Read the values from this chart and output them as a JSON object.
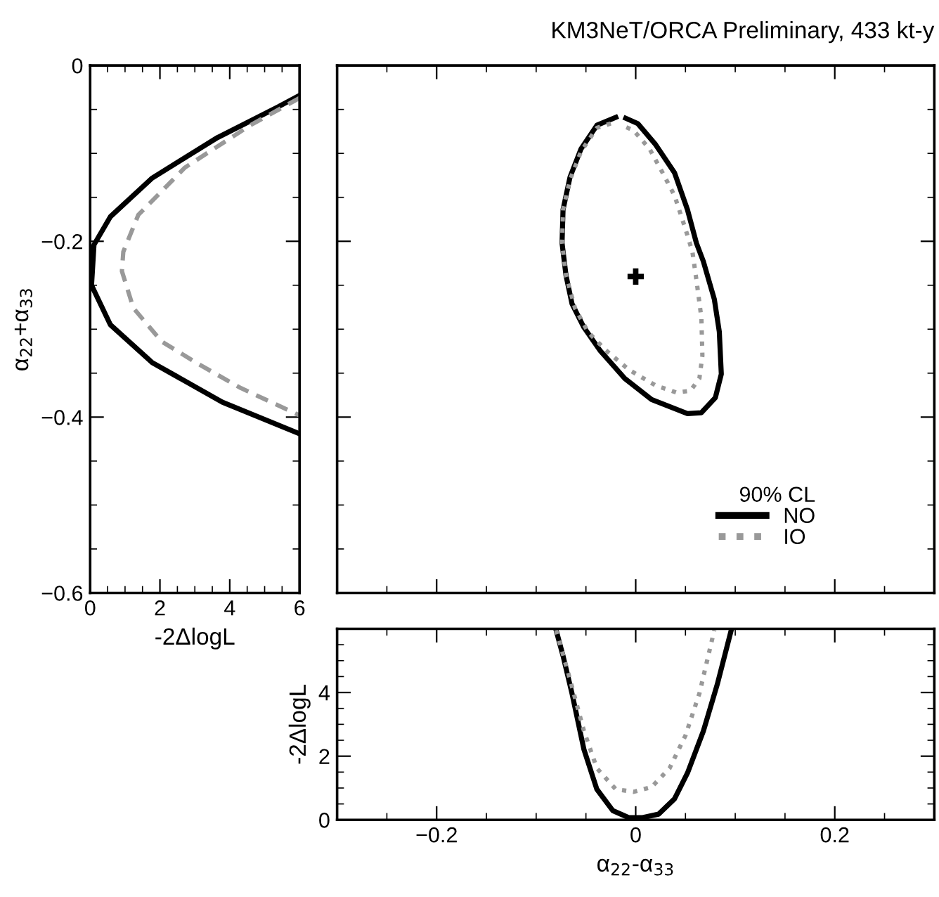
{
  "chart_data": [
    {
      "type": "line",
      "xlabel": "-2ΔlogL",
      "ylabel": "α$_{22}$+α$_{33}$",
      "xlim": [
        0,
        6
      ],
      "ylim": [
        -0.6,
        0
      ],
      "xticks": [
        0,
        2,
        4,
        6
      ],
      "yticks": [
        {
          "value": -0.6,
          "label": "−0.6"
        },
        {
          "value": -0.4,
          "label": "−0.4"
        },
        {
          "value": -0.2,
          "label": "−0.2"
        },
        0
      ],
      "grid": false,
      "legend": false,
      "series": [
        {
          "color": "#000000",
          "line_style": "solid",
          "x": [
            6.0,
            5.39,
            3.65,
            1.78,
            0.58,
            0.11,
            0.04,
            0.58,
            1.78,
            3.79,
            6.0
          ],
          "values": [
            -0.034,
            -0.047,
            -0.082,
            -0.128,
            -0.172,
            -0.204,
            -0.25,
            -0.295,
            -0.338,
            -0.383,
            -0.419
          ]
        },
        {
          "color": "#999999",
          "line_style": "dashed",
          "x": [
            6.0,
            4.59,
            2.72,
            1.38,
            0.95,
            0.91,
            1.24,
            2.05,
            3.12,
            4.32,
            6.0
          ],
          "values": [
            -0.037,
            -0.068,
            -0.116,
            -0.17,
            -0.212,
            -0.234,
            -0.276,
            -0.314,
            -0.34,
            -0.367,
            -0.398
          ]
        }
      ]
    },
    {
      "type": "line",
      "title": "KM3NeT/ORCA Preliminary, 433 kt-y",
      "legend_title": "90% CL",
      "xlim": [
        -0.3,
        0.3
      ],
      "ylim": [
        -0.6,
        0
      ],
      "xticks": [
        -0.2,
        0,
        0.2
      ],
      "yticks": [
        -0.6,
        -0.4,
        -0.2,
        0
      ],
      "tick_labels": false,
      "grid": false,
      "legend": "bottom",
      "series": [
        {
          "name": "NO",
          "color": "#000000",
          "line_style": "solid",
          "x": [
            -0.02,
            -0.039,
            -0.055,
            -0.066,
            -0.073,
            -0.074,
            -0.07,
            -0.064,
            -0.052,
            -0.036,
            -0.011,
            0.016,
            0.052,
            0.066,
            0.08,
            0.086,
            0.084,
            0.079,
            0.068,
            0.061,
            0.052,
            0.039,
            0.02,
            0.002,
            -0.01
          ],
          "values": [
            -0.059,
            -0.068,
            -0.095,
            -0.127,
            -0.164,
            -0.202,
            -0.239,
            -0.271,
            -0.298,
            -0.324,
            -0.356,
            -0.38,
            -0.396,
            -0.395,
            -0.378,
            -0.351,
            -0.303,
            -0.266,
            -0.223,
            -0.202,
            -0.164,
            -0.122,
            -0.09,
            -0.066,
            -0.06
          ]
        },
        {
          "name": "IO",
          "color": "#999999",
          "line_style": "dotted",
          "x": [
            -0.025,
            -0.039,
            -0.055,
            -0.066,
            -0.073,
            -0.074,
            -0.07,
            -0.061,
            -0.048,
            -0.03,
            -0.007,
            0.02,
            0.041,
            0.055,
            0.064,
            0.067,
            0.066,
            0.061,
            0.057,
            0.05,
            0.039,
            0.027,
            0.014,
            -0.002,
            -0.014
          ],
          "values": [
            -0.066,
            -0.071,
            -0.098,
            -0.13,
            -0.164,
            -0.202,
            -0.239,
            -0.276,
            -0.303,
            -0.324,
            -0.346,
            -0.364,
            -0.372,
            -0.37,
            -0.356,
            -0.33,
            -0.287,
            -0.244,
            -0.212,
            -0.186,
            -0.148,
            -0.122,
            -0.095,
            -0.074,
            -0.068
          ]
        },
        {
          "type": "scatter",
          "color": "#000000",
          "marker": "cross",
          "x": [
            0
          ],
          "values": [
            -0.24
          ]
        }
      ]
    },
    {
      "type": "line",
      "xlabel": "α$_{22}$-α$_{33}$",
      "ylabel": "-2ΔlogL",
      "xlim": [
        -0.3,
        0.3
      ],
      "ylim": [
        0,
        6
      ],
      "xticks": [
        {
          "value": -0.2,
          "label": "−0.2"
        },
        0,
        0.2
      ],
      "yticks": [
        0,
        2,
        4
      ],
      "grid": false,
      "legend": false,
      "series": [
        {
          "color": "#000000",
          "line_style": "solid",
          "x": [
            -0.08,
            -0.073,
            -0.064,
            -0.052,
            -0.039,
            -0.023,
            -0.007,
            0.007,
            0.023,
            0.039,
            0.052,
            0.068,
            0.082,
            0.096
          ],
          "values": [
            5.96,
            5.15,
            3.97,
            2.21,
            0.96,
            0.29,
            0.07,
            0.07,
            0.18,
            0.66,
            1.47,
            2.79,
            4.26,
            5.96
          ]
        },
        {
          "color": "#999999",
          "line_style": "dotted",
          "x": [
            -0.08,
            -0.066,
            -0.052,
            -0.039,
            -0.02,
            -0.002,
            0.016,
            0.034,
            0.05,
            0.064,
            0.079
          ],
          "values": [
            5.96,
            4.41,
            2.79,
            1.62,
            0.96,
            0.88,
            1.03,
            1.62,
            2.65,
            3.97,
            5.96
          ]
        }
      ]
    }
  ]
}
